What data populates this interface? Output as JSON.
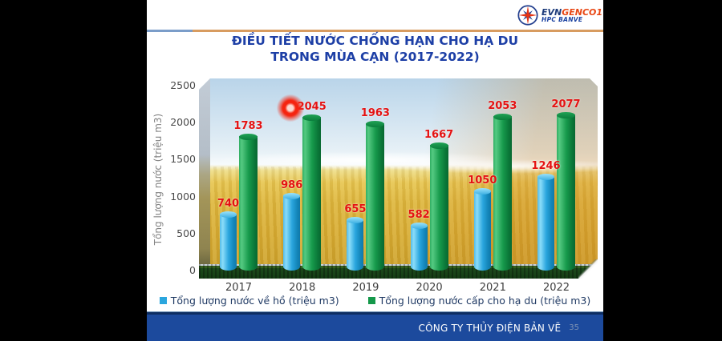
{
  "header": {
    "logo": {
      "brand_evn": "EVN",
      "brand_genco": "GENCO1",
      "brand_sub": "HPC BANVE"
    },
    "title_line1": "ĐIỀU TIẾT NƯỚC CHỐNG HẠN CHO HẠ DU",
    "title_line2": "TRONG MÙA CẠN (2017-2022)"
  },
  "footer": {
    "company": "CÔNG TY THỦY ĐIỆN BẢN VẼ",
    "page_number": "35"
  },
  "chart_data": {
    "type": "bar",
    "title": "ĐIỀU TIẾT NƯỚC CHỐNG HẠN CHO HẠ DU TRONG MÙA CẠN (2017-2022)",
    "categories": [
      "2017",
      "2018",
      "2019",
      "2020",
      "2021",
      "2022"
    ],
    "series": [
      {
        "name": "Tổng lượng nước về hồ (triệu m3)",
        "color": "#2aa6de",
        "values": [
          740,
          986,
          655,
          582,
          1050,
          1246
        ]
      },
      {
        "name": "Tổng lượng nước cấp cho hạ du (triệu m3)",
        "color": "#14984a",
        "values": [
          1783,
          2045,
          1963,
          1667,
          2053,
          2077
        ]
      }
    ],
    "ylabel": "Tổng lượng nước (triệu m3)",
    "ylim": [
      0,
      2500
    ],
    "yticks": [
      0,
      500,
      1000,
      1500,
      2000,
      2500
    ],
    "value_label_color": "#e51212",
    "legend_position": "bottom",
    "grid": false,
    "background": "rice-field-photo",
    "bar_shape": "cylinder-3d"
  }
}
